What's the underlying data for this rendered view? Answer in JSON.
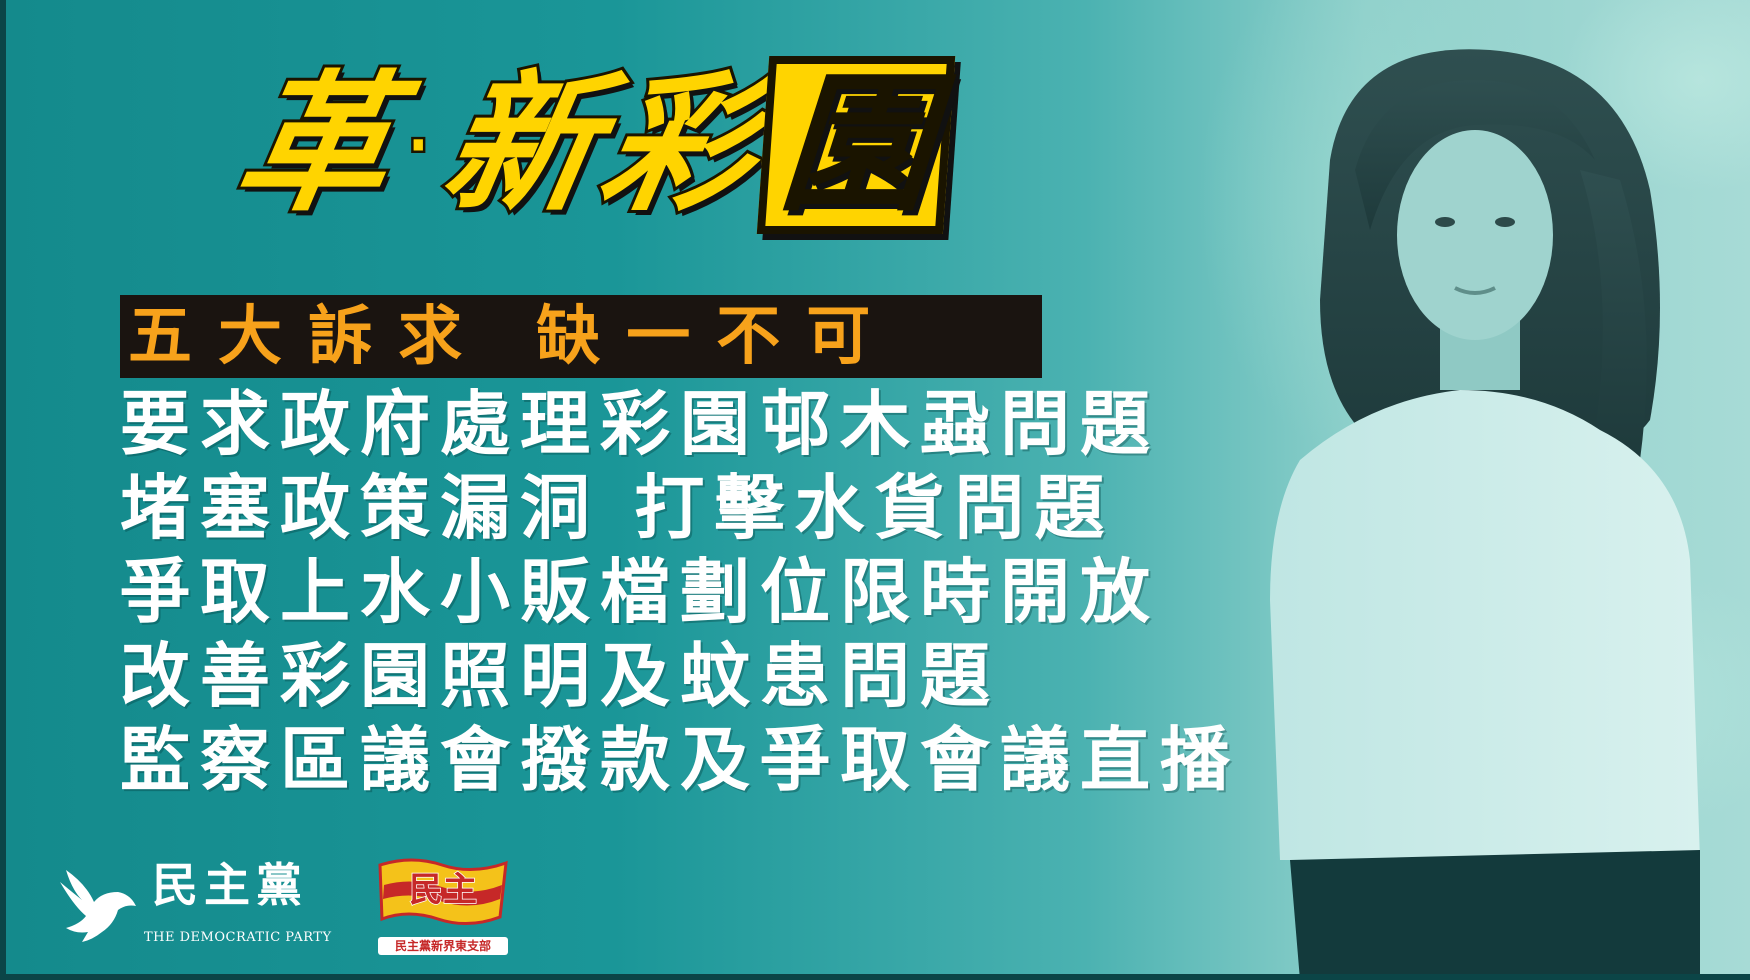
{
  "title": {
    "char1": "革",
    "dot": "·",
    "char2": "新",
    "char3": "彩",
    "char4": "園"
  },
  "subtitle": "五大訴求 缺一不可",
  "demands": [
    "要求政府處理彩園邨木蝨問題",
    "堵塞政策漏洞 打擊水貨問題",
    "爭取上水小販檔劃位限時開放",
    "改善彩園照明及蚊患問題",
    "監察區議會撥款及爭取會議直播"
  ],
  "logos": {
    "democratic_party": {
      "name_zh": "民主黨",
      "name_en": "THE DEMOCRATIC PARTY"
    },
    "association": {
      "emblem_text": "民主",
      "caption": "民主黨新界東支部"
    }
  },
  "colors": {
    "background": "#1a9698",
    "title_yellow": "#ffd400",
    "banner_bg": "#1a1410",
    "banner_text": "#f7a21b",
    "demand_text": "#ffffff"
  }
}
